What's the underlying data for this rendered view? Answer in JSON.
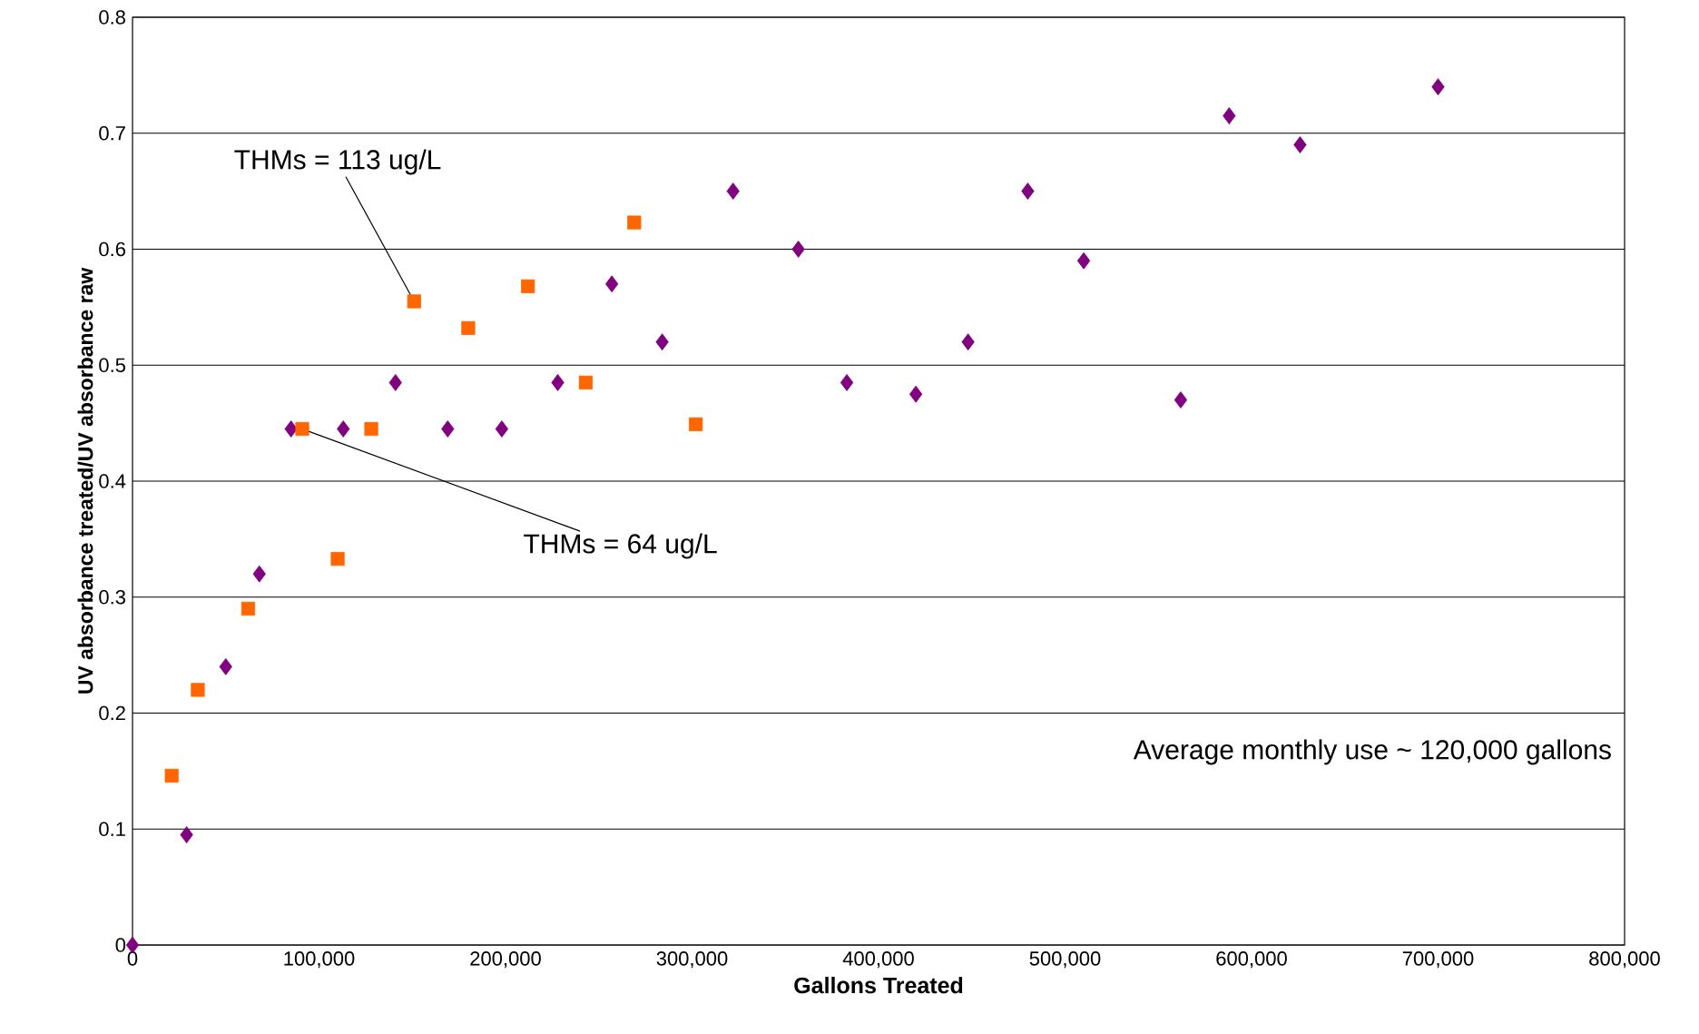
{
  "chart_data": {
    "type": "scatter",
    "xlabel": "Gallons Treated",
    "ylabel": "UV absorbance treated/UV absorbance raw",
    "xlim": [
      0,
      800000
    ],
    "ylim": [
      0,
      0.8
    ],
    "xticks": [
      0,
      {
        "value": 100000,
        "label": "100,000"
      },
      {
        "value": 200000,
        "label": "200,000"
      },
      {
        "value": 300000,
        "label": "300,000"
      },
      {
        "value": 400000,
        "label": "400,000"
      },
      {
        "value": 500000,
        "label": "500,000"
      },
      {
        "value": 600000,
        "label": "600,000"
      },
      {
        "value": 700000,
        "label": "700,000"
      },
      {
        "value": 800000,
        "label": "800,000"
      }
    ],
    "yticks": [
      0,
      0.1,
      0.2,
      0.3,
      0.4,
      0.5,
      0.6,
      0.7,
      0.8
    ],
    "grid": "y",
    "series": [
      {
        "color": "#800080",
        "marker": "diamond",
        "x": [
          0,
          29000,
          50000,
          68000,
          85000,
          113000,
          141000,
          169000,
          198000,
          228000,
          257000,
          284000,
          322000,
          357000,
          383000,
          420000,
          448000,
          480000,
          510000,
          562000,
          588000,
          626000,
          700000
        ],
        "values": [
          0,
          0.095,
          0.24,
          0.32,
          0.445,
          0.445,
          0.485,
          0.445,
          0.445,
          0.485,
          0.57,
          0.52,
          0.65,
          0.6,
          0.485,
          0.475,
          0.52,
          0.65,
          0.59,
          0.47,
          0.715,
          0.69,
          0.74
        ]
      },
      {
        "color": "#ff6600",
        "marker": "square",
        "x": [
          21000,
          35000,
          62000,
          91000,
          110000,
          128000,
          151000,
          180000,
          212000,
          243000,
          269000,
          302000
        ],
        "values": [
          0.146,
          0.22,
          0.29,
          0.445,
          0.333,
          0.445,
          0.555,
          0.532,
          0.568,
          0.485,
          0.623,
          0.449
        ]
      }
    ],
    "annotations": [
      {
        "text": "THMs = 113 ug/L",
        "x": 151000,
        "y": 0.555
      },
      {
        "text": "THMs = 64 ug/L",
        "x": 91000,
        "y": 0.445
      },
      "Average monthly use ~ 120,000 gallons"
    ]
  }
}
